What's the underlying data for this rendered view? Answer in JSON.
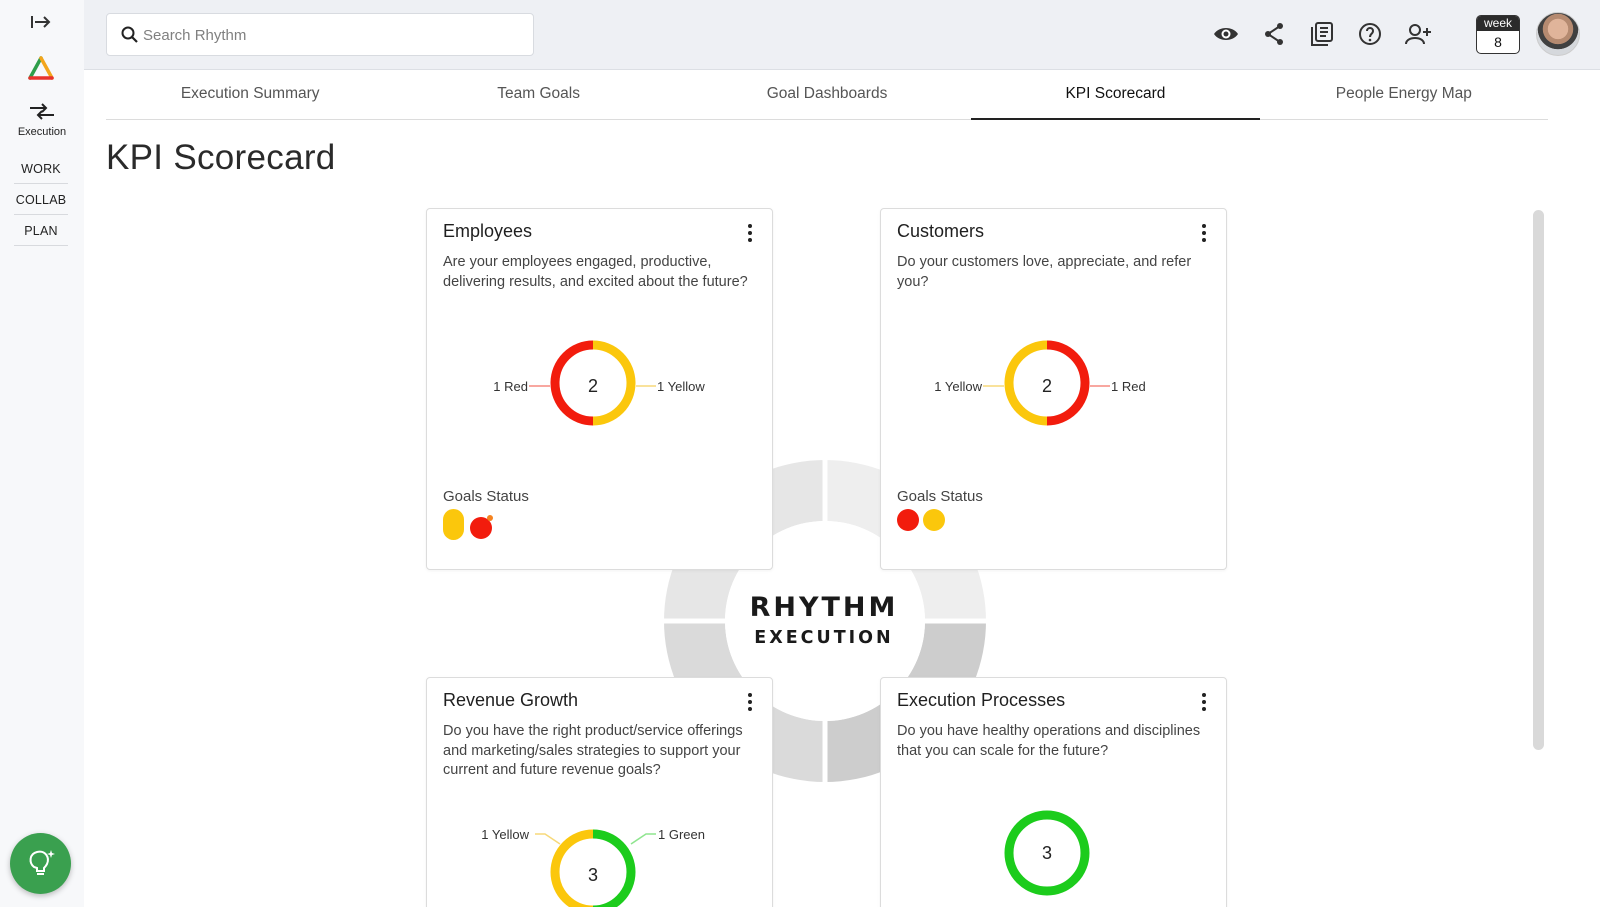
{
  "rail": {
    "execution_label": "Execution",
    "nav": [
      "WORK",
      "COLLAB",
      "PLAN"
    ]
  },
  "search": {
    "placeholder": "Search Rhythm"
  },
  "header": {
    "icons": [
      "eye-icon",
      "share-icon",
      "library-icon",
      "help-icon",
      "add-user-icon"
    ],
    "week_label": "week",
    "week_number": "8"
  },
  "tabs": [
    {
      "label": "Execution Summary",
      "active": false
    },
    {
      "label": "Team Goals",
      "active": false
    },
    {
      "label": "Goal Dashboards",
      "active": false
    },
    {
      "label": "KPI Scorecard",
      "active": true
    },
    {
      "label": "People Energy Map",
      "active": false
    }
  ],
  "page": {
    "title": "KPI Scorecard"
  },
  "brand": {
    "line1": "RHYTHM",
    "line2": "EXECUTION"
  },
  "colors": {
    "red": "#f21c0d",
    "yellow": "#fbc70c",
    "green": "#1ccc1c",
    "accent": "#3aa04f"
  },
  "cards": [
    {
      "title": "Employees",
      "description": "Are your employees engaged, productive, delivering results, and excited about the future?",
      "total": "2",
      "left_label": "1 Red",
      "right_label": "1 Yellow",
      "goals_status_label": "Goals Status"
    },
    {
      "title": "Customers",
      "description": "Do your customers love, appreciate, and refer you?",
      "total": "2",
      "left_label": "1 Yellow",
      "right_label": "1 Red",
      "goals_status_label": "Goals Status"
    },
    {
      "title": "Revenue Growth",
      "description": "Do you have the right product/service offerings and marketing/sales strategies to support your current and future revenue goals?",
      "total": "3",
      "left_label": "1 Yellow",
      "right_label": "1 Green"
    },
    {
      "title": "Execution Processes",
      "description": "Do you have healthy operations and disciplines that you can scale for the future?",
      "total": "3"
    }
  ]
}
